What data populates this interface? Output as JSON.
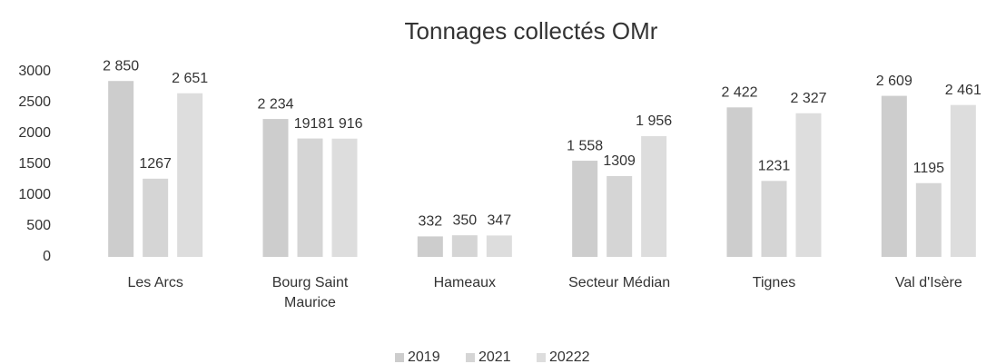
{
  "chart_data": {
    "type": "bar",
    "title": "Tonnages collectés OMr",
    "categories": [
      "Les Arcs",
      "Bourg Saint Maurice",
      "Hameaux",
      "Secteur Médian",
      "Tignes",
      "Val d'Isère"
    ],
    "series": [
      {
        "name": "2019",
        "color": "#cdcdcd",
        "values": [
          2850,
          2234,
          332,
          1558,
          2422,
          2609
        ],
        "value_labels": [
          "2 850",
          "2 234",
          "332",
          "1 558",
          "2 422",
          "2 609"
        ]
      },
      {
        "name": "2021",
        "color": "#d5d5d5",
        "values": [
          1267,
          1918,
          350,
          1309,
          1231,
          1195
        ],
        "value_labels": [
          "1267",
          "1918",
          "350",
          "1309",
          "1231",
          "1195"
        ]
      },
      {
        "name": "20222",
        "color": "#dddddd",
        "values": [
          2651,
          1916,
          347,
          1956,
          2327,
          2461
        ],
        "value_labels": [
          "2 651",
          "1 916",
          "347",
          "1 956",
          "2 327",
          "2 461"
        ]
      }
    ],
    "ylim": [
      0,
      3000
    ],
    "yticks": [
      0,
      500,
      1000,
      1500,
      2000,
      2500,
      3000
    ],
    "grid": false,
    "legend": "bottom"
  }
}
